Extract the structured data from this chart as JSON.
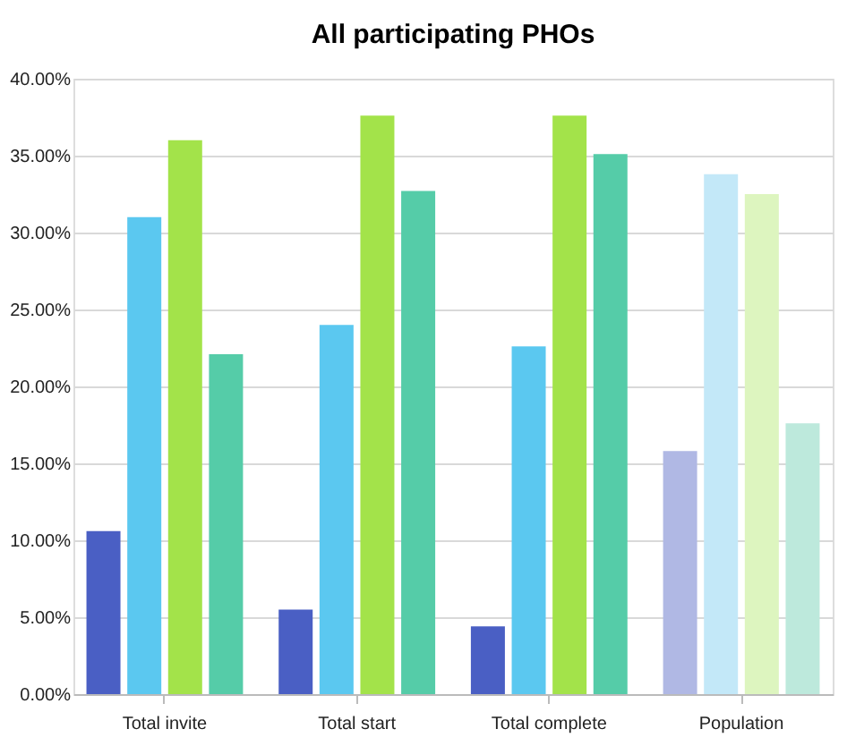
{
  "chart_data": {
    "type": "bar",
    "title": "All participating PHOs",
    "categories": [
      "Total invite",
      "Total start",
      "Total complete",
      "Population"
    ],
    "series": [
      {
        "colors": [
          "#4a5fc4",
          "#4a5fc4",
          "#4a5fc4",
          "#b0b8e4"
        ],
        "values": [
          10.6,
          5.5,
          4.4,
          15.8
        ]
      },
      {
        "colors": [
          "#5bc8f0",
          "#5bc8f0",
          "#5bc8f0",
          "#c3e8f8"
        ],
        "values": [
          31.0,
          24.0,
          22.6,
          33.8
        ]
      },
      {
        "colors": [
          "#a3e34a",
          "#a3e34a",
          "#a3e34a",
          "#ddf5bf"
        ],
        "values": [
          36.0,
          37.6,
          37.6,
          32.5
        ]
      },
      {
        "colors": [
          "#55cca8",
          "#55cca8",
          "#55cca8",
          "#bde9dc"
        ],
        "values": [
          22.1,
          32.7,
          35.1,
          17.6
        ]
      }
    ],
    "ylim": [
      0,
      40
    ],
    "yticks": [
      {
        "value": 0,
        "label": "0.00%"
      },
      {
        "value": 5,
        "label": "5.00%"
      },
      {
        "value": 10,
        "label": "10.00%"
      },
      {
        "value": 15,
        "label": "15.00%"
      },
      {
        "value": 20,
        "label": "20.00%"
      },
      {
        "value": 25,
        "label": "25.00%"
      },
      {
        "value": 30,
        "label": "30.00%"
      },
      {
        "value": 35,
        "label": "35.00%"
      },
      {
        "value": 40,
        "label": "40.00%"
      }
    ],
    "grid": "y",
    "legend": false
  }
}
